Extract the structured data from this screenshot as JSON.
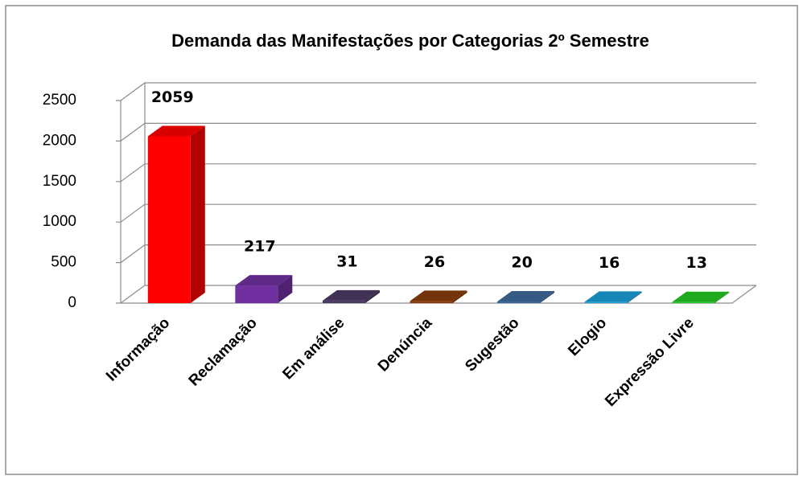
{
  "chart_data": {
    "type": "bar3d",
    "title": "Demanda das Manifestações por Categorias 2º Semestre",
    "categories": [
      "Informação",
      "Reclamação",
      "Em análise",
      "Denúncia",
      "Sugestão",
      "Elogio",
      "Expressão Livre"
    ],
    "values": [
      2059,
      217,
      31,
      26,
      20,
      16,
      13
    ],
    "colors": [
      "#ff0000",
      "#7030a0",
      "#4b3a64",
      "#8a3c0a",
      "#3e6a9a",
      "#1a9ed6",
      "#22c822"
    ],
    "ylim": [
      0,
      2500
    ],
    "yticks": [
      0,
      500,
      1000,
      1500,
      2000,
      2500
    ],
    "grid": true
  }
}
